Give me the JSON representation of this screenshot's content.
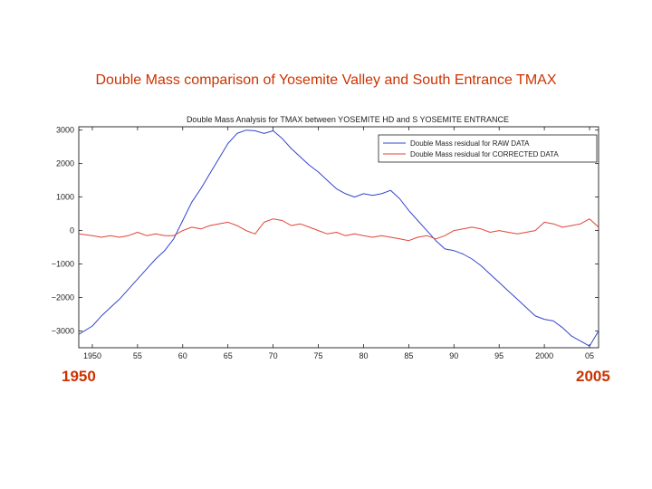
{
  "slide": {
    "title": "Double Mass comparison of Yosemite Valley and South Entrance TMAX",
    "start_year_label": "1950",
    "end_year_label": "2005"
  },
  "colors": {
    "title": "#cc3300",
    "raw_series": "#3344cc",
    "corrected_series": "#e0443a",
    "axis": "#000000"
  },
  "chart_data": {
    "type": "line",
    "title": "Double Mass Analysis for TMAX between YOSEMITE HD and S YOSEMITE ENTRANCE",
    "xlabel": "",
    "ylabel": "",
    "xlim": [
      1948.5,
      2006
    ],
    "ylim": [
      -3500,
      3100
    ],
    "xticks": [
      1950,
      1955,
      1960,
      1965,
      1970,
      1975,
      1980,
      1985,
      1990,
      1995,
      2000,
      2005
    ],
    "xtick_labels": [
      "1950",
      "55",
      "60",
      "65",
      "70",
      "75",
      "80",
      "85",
      "90",
      "95",
      "2000",
      "05"
    ],
    "yticks": [
      3000,
      2000,
      1000,
      0,
      -1000,
      -2000,
      -3000
    ],
    "ytick_labels": [
      "3000",
      "2000",
      "1000",
      "0",
      "−1000",
      "−2000",
      "−3000"
    ],
    "legend_position": "top-right",
    "grid": false,
    "series": [
      {
        "name": "Double Mass residual for RAW DATA",
        "color": "#3344cc",
        "x": [
          1948.5,
          1950,
          1951,
          1952,
          1953,
          1954,
          1955,
          1956,
          1957,
          1958,
          1959,
          1960,
          1961,
          1962,
          1963,
          1964,
          1965,
          1966,
          1967,
          1968,
          1969,
          1970,
          1971,
          1972,
          1973,
          1974,
          1975,
          1976,
          1977,
          1978,
          1979,
          1980,
          1981,
          1982,
          1983,
          1984,
          1985,
          1986,
          1987,
          1988,
          1989,
          1990,
          1991,
          1992,
          1993,
          1994,
          1995,
          1996,
          1997,
          1998,
          1999,
          2000,
          2001,
          2002,
          2003,
          2004,
          2005,
          2006
        ],
        "y": [
          -3100,
          -2850,
          -2550,
          -2300,
          -2050,
          -1750,
          -1450,
          -1150,
          -850,
          -600,
          -250,
          300,
          850,
          1250,
          1700,
          2150,
          2600,
          2900,
          3000,
          2980,
          2900,
          2980,
          2750,
          2450,
          2200,
          1950,
          1750,
          1500,
          1250,
          1100,
          1000,
          1100,
          1050,
          1100,
          1200,
          950,
          600,
          300,
          0,
          -300,
          -550,
          -600,
          -700,
          -850,
          -1050,
          -1300,
          -1550,
          -1800,
          -2050,
          -2300,
          -2550,
          -2650,
          -2700,
          -2900,
          -3150,
          -3300,
          -3450,
          -3000
        ]
      },
      {
        "name": "Double Mass residual for CORRECTED DATA",
        "color": "#e0443a",
        "x": [
          1948.5,
          1950,
          1951,
          1952,
          1953,
          1954,
          1955,
          1956,
          1957,
          1958,
          1959,
          1960,
          1961,
          1962,
          1963,
          1964,
          1965,
          1966,
          1967,
          1968,
          1969,
          1970,
          1971,
          1972,
          1973,
          1974,
          1975,
          1976,
          1977,
          1978,
          1979,
          1980,
          1981,
          1982,
          1983,
          1984,
          1985,
          1986,
          1987,
          1988,
          1989,
          1990,
          1991,
          1992,
          1993,
          1994,
          1995,
          1996,
          1997,
          1998,
          1999,
          2000,
          2001,
          2002,
          2003,
          2004,
          2005,
          2006
        ],
        "y": [
          -100,
          -150,
          -200,
          -150,
          -200,
          -150,
          -50,
          -150,
          -100,
          -150,
          -150,
          0,
          100,
          50,
          150,
          200,
          250,
          150,
          0,
          -100,
          250,
          350,
          300,
          150,
          200,
          100,
          0,
          -100,
          -50,
          -150,
          -100,
          -150,
          -200,
          -150,
          -200,
          -250,
          -300,
          -200,
          -150,
          -250,
          -150,
          0,
          50,
          100,
          50,
          -50,
          0,
          -50,
          -100,
          -50,
          0,
          250,
          200,
          100,
          150,
          200,
          350,
          100
        ]
      }
    ]
  }
}
